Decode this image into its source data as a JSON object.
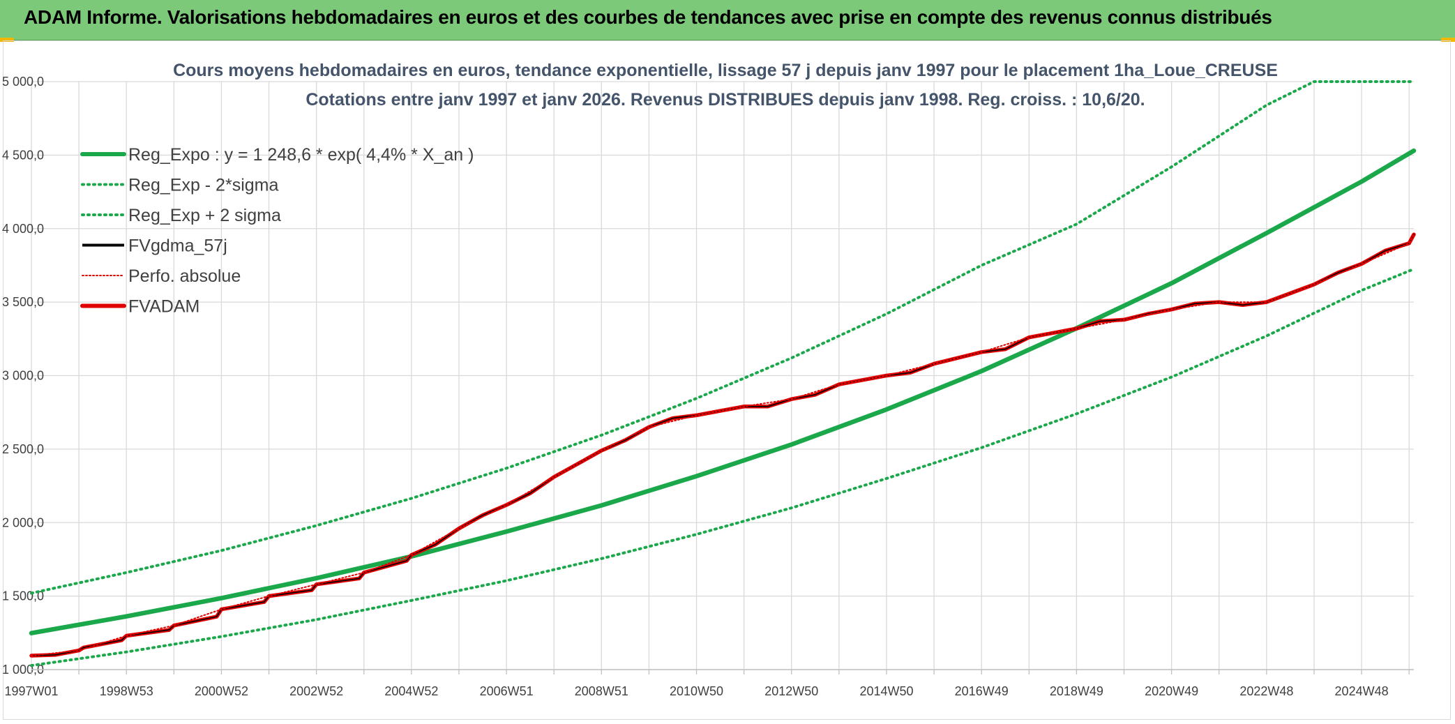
{
  "banner": {
    "title": "ADAM Informe. Valorisations hebdomadaires en euros et des courbes de tendances avec prise en compte des revenus connus distribués"
  },
  "colors": {
    "banner": "#7dc97a",
    "reg_expo": "#1aa84b",
    "fvgdma": "#000000",
    "perfo": "#e00000",
    "fvadam": "#e00000",
    "grid": "#d9d9d9"
  },
  "chart_data": {
    "type": "line",
    "title_line1": "Cours moyens hebdomadaires en euros, tendance exponentielle, lissage 57 j depuis janv 1997 pour le placement 1ha_Loue_CREUSE",
    "title_line2": "Cotations entre janv 1997 et janv 2026. Revenus DISTRIBUES depuis janv 1998. Reg. croiss. : 10,6/20.",
    "x_range": [
      1997.0,
      2026.1
    ],
    "x_ticks": [
      {
        "label": "1997W01",
        "value": 1997.0
      },
      {
        "label": "1998W53",
        "value": 1999.0
      },
      {
        "label": "2000W52",
        "value": 2001.0
      },
      {
        "label": "2002W52",
        "value": 2003.0
      },
      {
        "label": "2004W52",
        "value": 2005.0
      },
      {
        "label": "2006W51",
        "value": 2007.0
      },
      {
        "label": "2008W51",
        "value": 2009.0
      },
      {
        "label": "2010W50",
        "value": 2011.0
      },
      {
        "label": "2012W50",
        "value": 2013.0
      },
      {
        "label": "2014W50",
        "value": 2015.0
      },
      {
        "label": "2016W49",
        "value": 2017.0
      },
      {
        "label": "2018W49",
        "value": 2019.0
      },
      {
        "label": "2020W49",
        "value": 2021.0
      },
      {
        "label": "2022W48",
        "value": 2023.0
      },
      {
        "label": "2024W48",
        "value": 2025.0
      }
    ],
    "y_range": [
      1000,
      5000
    ],
    "y_ticks": [
      {
        "label": "1 000,0",
        "value": 1000
      },
      {
        "label": "1 500,0",
        "value": 1500
      },
      {
        "label": "2 000,0",
        "value": 2000
      },
      {
        "label": "2 500,0",
        "value": 2500
      },
      {
        "label": "3 000,0",
        "value": 3000
      },
      {
        "label": "3 500,0",
        "value": 3500
      },
      {
        "label": "4 000,0",
        "value": 4000
      },
      {
        "label": "4 500,0",
        "value": 4500
      },
      {
        "label": "5 000,0",
        "value": 5000
      }
    ],
    "grid": true,
    "legend_position": "top-left",
    "legend": [
      {
        "key": "reg_expo",
        "label": "Reg_Expo : y = 1 248,6 * exp( 4,4% *  X_an )",
        "style": "solid-thick",
        "color": "#1aa84b"
      },
      {
        "key": "reg_minus",
        "label": "Reg_Exp - 2*sigma",
        "style": "dotted",
        "color": "#1aa84b"
      },
      {
        "key": "reg_plus",
        "label": "Reg_Exp + 2 sigma",
        "style": "dotted",
        "color": "#1aa84b"
      },
      {
        "key": "fvgdma",
        "label": "FVgdma_57j",
        "style": "solid",
        "color": "#000000"
      },
      {
        "key": "perfo",
        "label": "Perfo. absolue",
        "style": "dotted",
        "color": "#e00000"
      },
      {
        "key": "fvadam",
        "label": "FVADAM",
        "style": "solid-thick",
        "color": "#e00000"
      }
    ],
    "series": [
      {
        "name": "Reg_Expo",
        "x": [
          1997.0,
          1999.0,
          2001.0,
          2003.0,
          2005.0,
          2007.0,
          2009.0,
          2011.0,
          2013.0,
          2015.0,
          2017.0,
          2019.0,
          2021.0,
          2023.0,
          2025.0,
          2026.1
        ],
        "y": [
          1248,
          1362,
          1486,
          1622,
          1770,
          1939,
          2117,
          2316,
          2531,
          2770,
          3031,
          3322,
          3628,
          3970,
          4320,
          4530
        ]
      },
      {
        "name": "Reg_Exp - 2*sigma",
        "x": [
          1997.0,
          1999.0,
          2001.0,
          2003.0,
          2005.0,
          2007.0,
          2009.0,
          2011.0,
          2013.0,
          2015.0,
          2017.0,
          2019.0,
          2021.0,
          2023.0,
          2025.0,
          2026.1
        ],
        "y": [
          1028,
          1120,
          1225,
          1340,
          1470,
          1605,
          1755,
          1920,
          2100,
          2300,
          2510,
          2740,
          2990,
          3270,
          3580,
          3725
        ]
      },
      {
        "name": "Reg_Exp + 2 sigma",
        "x": [
          1997.0,
          1999.0,
          2001.0,
          2003.0,
          2005.0,
          2007.0,
          2009.0,
          2011.0,
          2013.0,
          2015.0,
          2017.0,
          2019.0,
          2021.0,
          2023.0,
          2024.0,
          2026.1
        ],
        "y": [
          1520,
          1660,
          1810,
          1980,
          2165,
          2370,
          2595,
          2845,
          3120,
          3420,
          3750,
          4030,
          4420,
          4840,
          5000,
          5000
        ]
      },
      {
        "name": "FVgdma_57j",
        "x": [
          1997.0,
          1997.5,
          1998.0,
          1998.1,
          1998.9,
          1999.0,
          1999.9,
          2000.0,
          2000.9,
          2001.0,
          2001.9,
          2002.0,
          2002.9,
          2003.0,
          2003.9,
          2004.0,
          2004.9,
          2005.0,
          2005.5,
          2006.0,
          2006.5,
          2007.0,
          2007.5,
          2008.0,
          2008.5,
          2009.0,
          2009.5,
          2010.0,
          2010.5,
          2011.0,
          2011.5,
          2012.0,
          2012.5,
          2013.0,
          2013.5,
          2014.0,
          2014.5,
          2015.0,
          2015.5,
          2016.0,
          2016.5,
          2017.0,
          2017.5,
          2018.0,
          2018.5,
          2019.0,
          2019.5,
          2020.0,
          2020.5,
          2021.0,
          2021.5,
          2022.0,
          2022.5,
          2023.0,
          2023.5,
          2024.0,
          2024.5,
          2025.0,
          2025.5,
          2026.0,
          2026.1
        ],
        "y": [
          1095,
          1100,
          1130,
          1150,
          1200,
          1230,
          1270,
          1300,
          1360,
          1410,
          1460,
          1500,
          1540,
          1580,
          1620,
          1660,
          1740,
          1780,
          1850,
          1960,
          2050,
          2120,
          2200,
          2310,
          2400,
          2490,
          2560,
          2650,
          2710,
          2730,
          2760,
          2790,
          2790,
          2840,
          2870,
          2940,
          2970,
          3000,
          3020,
          3080,
          3120,
          3160,
          3180,
          3260,
          3290,
          3320,
          3370,
          3380,
          3420,
          3450,
          3490,
          3500,
          3480,
          3500,
          3560,
          3620,
          3700,
          3760,
          3850,
          3900,
          3960
        ]
      },
      {
        "name": "Perfo. absolue",
        "x": [
          1997.0,
          1998.0,
          1999.0,
          2000.0,
          2001.0,
          2002.0,
          2003.0,
          2004.0,
          2005.0,
          2006.0,
          2007.0,
          2008.0,
          2009.0,
          2010.0,
          2011.0,
          2012.0,
          2013.0,
          2014.0,
          2015.0,
          2016.0,
          2017.0,
          2018.0,
          2019.0,
          2020.0,
          2021.0,
          2022.0,
          2023.0,
          2024.0,
          2025.0,
          2026.0,
          2026.1
        ],
        "y": [
          1095,
          1130,
          1230,
          1300,
          1410,
          1500,
          1580,
          1660,
          1780,
          1960,
          2120,
          2310,
          2490,
          2650,
          2730,
          2790,
          2840,
          2940,
          3000,
          3080,
          3160,
          3260,
          3320,
          3380,
          3450,
          3500,
          3500,
          3620,
          3760,
          3900,
          3960
        ]
      },
      {
        "name": "FVADAM",
        "x": [
          1997.0,
          1997.5,
          1998.0,
          1998.1,
          1998.9,
          1999.0,
          1999.9,
          2000.0,
          2000.9,
          2001.0,
          2001.9,
          2002.0,
          2002.9,
          2003.0,
          2003.9,
          2004.0,
          2004.9,
          2005.0,
          2005.5,
          2006.0,
          2006.5,
          2007.0,
          2007.5,
          2008.0,
          2008.5,
          2009.0,
          2009.5,
          2010.0,
          2010.5,
          2011.0,
          2011.5,
          2012.0,
          2012.5,
          2013.0,
          2013.5,
          2014.0,
          2014.5,
          2015.0,
          2015.5,
          2016.0,
          2016.5,
          2017.0,
          2017.5,
          2018.0,
          2018.5,
          2019.0,
          2019.5,
          2020.0,
          2020.5,
          2021.0,
          2021.5,
          2022.0,
          2022.5,
          2023.0,
          2023.5,
          2024.0,
          2024.5,
          2025.0,
          2025.5,
          2026.0,
          2026.1
        ],
        "y": [
          1095,
          1100,
          1130,
          1150,
          1200,
          1230,
          1270,
          1300,
          1360,
          1410,
          1460,
          1500,
          1540,
          1580,
          1620,
          1660,
          1740,
          1780,
          1850,
          1960,
          2050,
          2120,
          2200,
          2310,
          2400,
          2490,
          2560,
          2650,
          2710,
          2730,
          2760,
          2790,
          2790,
          2840,
          2870,
          2940,
          2970,
          3000,
          3020,
          3080,
          3120,
          3160,
          3180,
          3260,
          3290,
          3320,
          3370,
          3380,
          3420,
          3450,
          3490,
          3500,
          3480,
          3500,
          3560,
          3620,
          3700,
          3760,
          3850,
          3900,
          3960
        ]
      }
    ]
  }
}
